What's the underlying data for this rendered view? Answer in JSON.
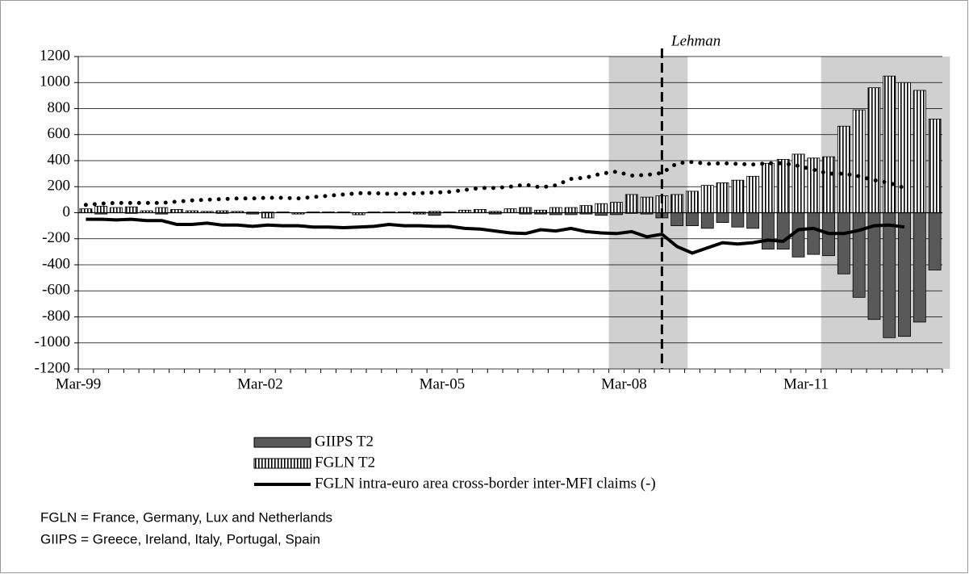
{
  "chart_data": {
    "type": "bar",
    "categories": [
      "Mar-99",
      null,
      null,
      null,
      null,
      null,
      null,
      null,
      null,
      null,
      null,
      null,
      "Mar-02",
      null,
      null,
      null,
      null,
      null,
      null,
      null,
      null,
      null,
      null,
      null,
      "Mar-05",
      null,
      null,
      null,
      null,
      null,
      null,
      null,
      null,
      null,
      null,
      null,
      "Mar-08",
      null,
      null,
      null,
      null,
      null,
      null,
      null,
      null,
      null,
      null,
      null,
      "Mar-11",
      null,
      null,
      null,
      null,
      null,
      null,
      null,
      null
    ],
    "series": [
      {
        "name": "GIIPS T2",
        "color": "#595959",
        "values": [
          10,
          -10,
          5,
          -5,
          5,
          -10,
          5,
          5,
          5,
          -5,
          5,
          -10,
          5,
          5,
          -10,
          5,
          5,
          5,
          -15,
          5,
          5,
          5,
          5,
          -20,
          5,
          5,
          10,
          -10,
          10,
          -10,
          -10,
          -15,
          -15,
          -10,
          -20,
          -15,
          -5,
          -10,
          -40,
          -100,
          -100,
          -120,
          -75,
          -110,
          -120,
          -280,
          -280,
          -340,
          -320,
          -330,
          -470,
          -650,
          -820,
          -960,
          -950,
          -840,
          -440
        ]
      },
      {
        "name": "FGLN T2",
        "color": "#ffffff",
        "pattern": "vertical-stripes",
        "values": [
          30,
          50,
          40,
          45,
          15,
          40,
          25,
          15,
          10,
          15,
          10,
          5,
          -40,
          5,
          -10,
          5,
          5,
          5,
          -15,
          5,
          5,
          5,
          -10,
          10,
          5,
          20,
          25,
          10,
          30,
          40,
          20,
          40,
          40,
          55,
          70,
          80,
          140,
          120,
          130,
          140,
          165,
          210,
          230,
          250,
          280,
          380,
          410,
          450,
          420,
          430,
          665,
          790,
          960,
          1050,
          1000,
          940,
          720
        ]
      },
      {
        "name": "FGLN intra-euro area cross-border inter-MFI claims (-)",
        "type": "line",
        "style": "solid",
        "color": "#000000",
        "values": [
          -50,
          -50,
          -55,
          -50,
          -60,
          -60,
          -90,
          -90,
          -80,
          -95,
          -95,
          -105,
          -95,
          -100,
          -100,
          -110,
          -110,
          -115,
          -110,
          -105,
          -90,
          -100,
          -100,
          -105,
          -105,
          -120,
          -125,
          -140,
          -155,
          -160,
          -130,
          -140,
          -120,
          -145,
          -155,
          -160,
          -145,
          -185,
          -165,
          -260,
          -310,
          -270,
          -230,
          -240,
          -230,
          -210,
          -220,
          -130,
          -120,
          -160,
          -160,
          -135,
          -100,
          -95,
          -110,
          null,
          null
        ]
      },
      {
        "type": "line",
        "style": "dotted",
        "color": "#000000",
        "values": [
          60,
          70,
          75,
          75,
          75,
          75,
          85,
          95,
          100,
          105,
          110,
          110,
          115,
          115,
          110,
          120,
          130,
          140,
          150,
          150,
          145,
          145,
          150,
          155,
          160,
          175,
          190,
          190,
          200,
          215,
          195,
          210,
          260,
          270,
          300,
          315,
          285,
          290,
          305,
          380,
          390,
          375,
          380,
          375,
          370,
          380,
          380,
          360,
          330,
          300,
          300,
          280,
          250,
          230,
          190,
          null,
          null
        ]
      }
    ],
    "ylim": [
      -1200,
      1200
    ],
    "yticks": [
      -1200,
      -1000,
      -800,
      -600,
      -400,
      -200,
      0,
      200,
      400,
      600,
      800,
      1000,
      1200
    ],
    "grid": true,
    "annotation": "Lehman"
  },
  "notes": [
    "FGLN = France, Germany, Lux and Netherlands",
    "GIIPS = Greece, Ireland, Italy, Portugal, Spain"
  ]
}
